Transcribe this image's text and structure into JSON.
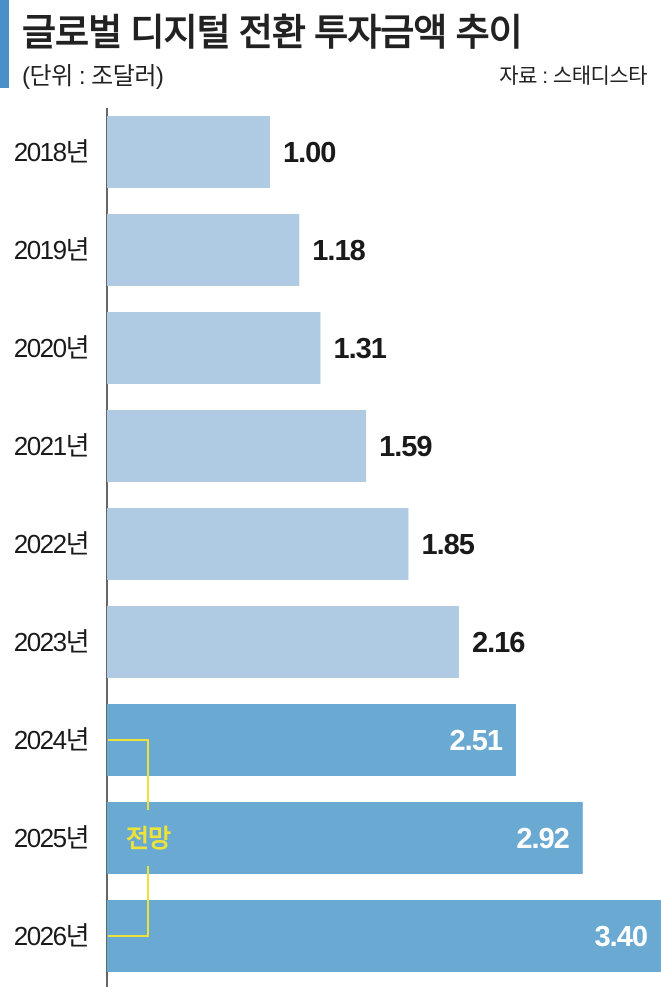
{
  "header": {
    "title": "글로벌 디지털 전환 투자금액 추이",
    "unit": "(단위 : 조달러)",
    "source": "자료 : 스태디스타"
  },
  "colors": {
    "accent": "#4a90c8",
    "actual_bar": "#aecbe3",
    "forecast_bar": "#6aa9d1",
    "actual_label": "#1a1a1a",
    "forecast_label": "#ffffff",
    "forecast_bracket": "#ede23a",
    "axis": "#333333"
  },
  "forecast": {
    "label": "전망",
    "years": [
      "2024년",
      "2025년",
      "2026년"
    ]
  },
  "chart_data": {
    "type": "bar",
    "orientation": "horizontal",
    "categories": [
      "2018년",
      "2019년",
      "2020년",
      "2021년",
      "2022년",
      "2023년",
      "2024년",
      "2025년",
      "2026년"
    ],
    "values": [
      1.0,
      1.18,
      1.31,
      1.59,
      1.85,
      2.16,
      2.51,
      2.92,
      3.4
    ],
    "value_labels": [
      "1.00",
      "1.18",
      "1.31",
      "1.59",
      "1.85",
      "2.16",
      "2.51",
      "2.92",
      "3.40"
    ],
    "xlim": [
      0,
      3.4
    ],
    "grid": false,
    "legend": "none"
  }
}
